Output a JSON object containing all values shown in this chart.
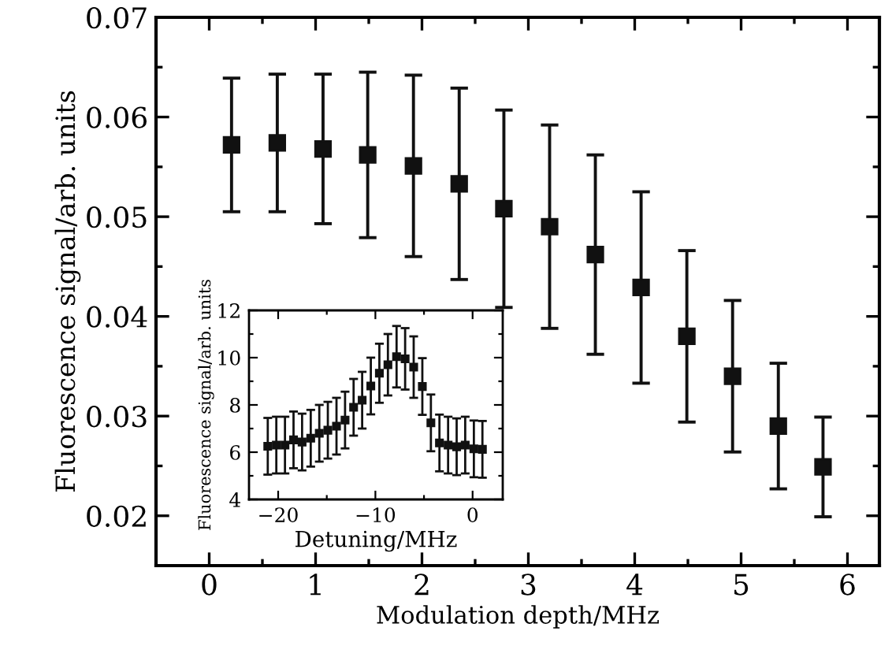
{
  "chart_data": [
    {
      "type": "scatter",
      "xlabel": "Modulation depth/MHz",
      "ylabel": "Fluorescence signal/arb. units",
      "marker": "square",
      "color": "#111111",
      "x": [
        0.21,
        0.64,
        1.07,
        1.49,
        1.92,
        2.35,
        2.77,
        3.2,
        3.63,
        4.06,
        4.49,
        4.92,
        5.35,
        5.77
      ],
      "values": [
        0.0572,
        0.0574,
        0.0568,
        0.0562,
        0.0551,
        0.0533,
        0.0508,
        0.049,
        0.0462,
        0.0429,
        0.038,
        0.034,
        0.029,
        0.0249
      ],
      "errors": [
        0.0067,
        0.0069,
        0.0075,
        0.0083,
        0.0091,
        0.0096,
        0.0099,
        0.0102,
        0.01,
        0.0096,
        0.0086,
        0.0076,
        0.0063,
        0.005
      ],
      "xlim": [
        -0.5,
        6.3
      ],
      "ylim": [
        0.015,
        0.07
      ],
      "xticks": [
        0,
        {
          "value": 0.5,
          "label": null
        },
        1,
        {
          "value": 1.5,
          "label": null
        },
        2,
        {
          "value": 2.5,
          "label": null
        },
        3,
        {
          "value": 3.5,
          "label": null
        },
        4,
        {
          "value": 4.5,
          "label": null
        },
        5,
        {
          "value": 5.5,
          "label": null
        },
        6
      ],
      "yticks": [
        0.02,
        {
          "value": 0.025,
          "label": null
        },
        0.03,
        {
          "value": 0.035,
          "label": null
        },
        0.04,
        {
          "value": 0.045,
          "label": null
        },
        0.05,
        {
          "value": 0.055,
          "label": null
        },
        0.06,
        {
          "value": 0.065,
          "label": null
        },
        0.07
      ]
    },
    {
      "type": "scatter",
      "xlabel": "Detuning/MHz",
      "ylabel": "Fluorescence signal/arb. units",
      "marker": "square",
      "color": "#111111",
      "x": [
        -21.07,
        -20.19,
        -19.3,
        -18.42,
        -17.54,
        -16.65,
        -15.77,
        -14.89,
        -14.0,
        -13.12,
        -12.24,
        -11.36,
        -10.47,
        -9.59,
        -8.71,
        -7.82,
        -6.94,
        -6.06,
        -5.17,
        -4.29,
        -3.41,
        -2.52,
        -1.64,
        -0.76,
        0.13,
        1.01
      ],
      "values": [
        6.25,
        6.3,
        6.3,
        6.52,
        6.43,
        6.59,
        6.8,
        6.93,
        7.1,
        7.36,
        7.9,
        8.2,
        8.8,
        9.34,
        9.7,
        10.04,
        9.95,
        9.6,
        8.78,
        7.24,
        6.39,
        6.3,
        6.23,
        6.3,
        6.14,
        6.12
      ],
      "errors": [
        1.2,
        1.2,
        1.2,
        1.2,
        1.2,
        1.2,
        1.2,
        1.2,
        1.2,
        1.2,
        1.2,
        1.2,
        1.2,
        1.25,
        1.3,
        1.3,
        1.3,
        1.3,
        1.2,
        1.2,
        1.2,
        1.2,
        1.2,
        1.2,
        1.2,
        1.2
      ],
      "xlim": [
        -23,
        3.1
      ],
      "ylim": [
        4,
        12
      ],
      "xticks": [
        {
          "value": -20,
          "label": "−20"
        },
        {
          "value": -15,
          "label": null
        },
        {
          "value": -10,
          "label": "−10"
        },
        {
          "value": -5,
          "label": null
        },
        0
      ],
      "yticks": [
        4,
        {
          "value": 5,
          "label": null
        },
        6,
        {
          "value": 7,
          "label": null
        },
        8,
        {
          "value": 9,
          "label": null
        },
        10,
        {
          "value": 11,
          "label": null
        },
        12
      ]
    }
  ]
}
